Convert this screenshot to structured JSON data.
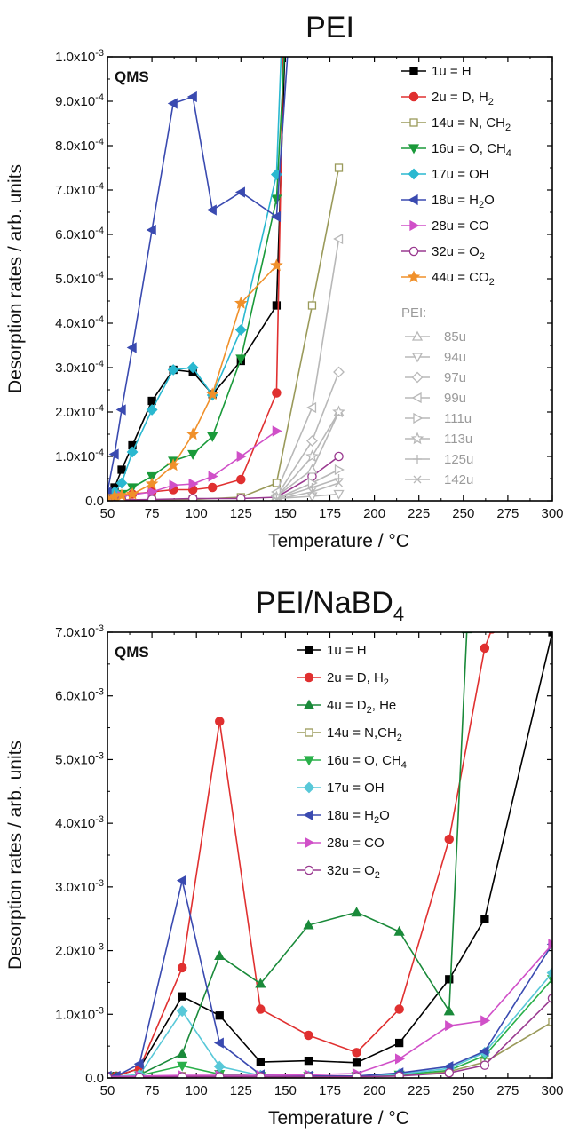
{
  "chart_data": [
    {
      "type": "line",
      "title": "PEI",
      "xlabel": "Temperature / °C",
      "ylabel": "Desorption rates / arb. units",
      "annotation": "QMS",
      "xlim": [
        50,
        300
      ],
      "ylim": [
        0,
        0.001
      ],
      "xticks": [
        "50",
        "75",
        "100",
        "125",
        "150",
        "175",
        "200",
        "225",
        "250",
        "275",
        "300"
      ],
      "yticks": [
        "0.0",
        "1.0x10-4",
        "2.0x10-4",
        "3.0x10-4",
        "4.0x10-4",
        "5.0x10-4",
        "6.0x10-4",
        "7.0x10-4",
        "8.0x10-4",
        "9.0x10-4",
        "1.0x10-3"
      ],
      "legend_group_label": "PEI:",
      "series": [
        {
          "name": "1u = H",
          "color": "#000000",
          "marker": "square",
          "filled": true,
          "x": [
            50,
            54,
            58,
            64,
            75,
            87,
            98,
            109,
            125,
            145,
            150
          ],
          "y": [
            1e-05,
            3e-05,
            7e-05,
            0.000125,
            0.000225,
            0.000295,
            0.00029,
            0.00024,
            0.000315,
            0.00044,
            0.00105
          ]
        },
        {
          "name": "2u = D, H2",
          "color": "#e03030",
          "marker": "circle",
          "filled": true,
          "x": [
            50,
            54,
            58,
            64,
            75,
            87,
            98,
            109,
            125,
            145,
            149
          ],
          "y": [
            5e-06,
            1e-05,
            1.2e-05,
            1.5e-05,
            2e-05,
            2.5e-05,
            2.5e-05,
            3e-05,
            4.8e-05,
            0.000243,
            0.00105
          ]
        },
        {
          "name": "14u = N, CH2",
          "color": "#9a9a5a",
          "marker": "square",
          "filled": false,
          "x": [
            50,
            58,
            75,
            98,
            125,
            145,
            165,
            180
          ],
          "y": [
            0,
            0,
            2e-06,
            3e-06,
            8e-06,
            4e-05,
            0.00044,
            0.00075
          ]
        },
        {
          "name": "16u = O, CH4",
          "color": "#1a9a3a",
          "marker": "triangle-down",
          "filled": true,
          "x": [
            50,
            54,
            58,
            64,
            75,
            87,
            98,
            109,
            125,
            145,
            150
          ],
          "y": [
            5e-06,
            1e-05,
            1.5e-05,
            3e-05,
            5.5e-05,
            9e-05,
            0.000105,
            0.000145,
            0.00032,
            0.00068,
            0.00105
          ]
        },
        {
          "name": "17u = OH",
          "color": "#2ab8d0",
          "marker": "diamond",
          "filled": true,
          "x": [
            50,
            54,
            58,
            64,
            75,
            87,
            98,
            109,
            125,
            145,
            148
          ],
          "y": [
            1e-05,
            2e-05,
            4e-05,
            0.00011,
            0.000205,
            0.000295,
            0.0003,
            0.000238,
            0.000385,
            0.000735,
            0.00105
          ]
        },
        {
          "name": "18u = H2O",
          "color": "#3a4ab0",
          "marker": "triangle-left",
          "filled": true,
          "x": [
            50,
            54,
            58,
            64,
            75,
            87,
            98,
            109,
            125,
            145,
            152
          ],
          "y": [
            2e-05,
            0.000105,
            0.000205,
            0.000345,
            0.00061,
            0.000895,
            0.00091,
            0.000655,
            0.000695,
            0.00064,
            0.00105
          ]
        },
        {
          "name": "28u = CO",
          "color": "#d050c8",
          "marker": "triangle-right",
          "filled": true,
          "x": [
            50,
            58,
            75,
            87,
            98,
            109,
            125,
            145
          ],
          "y": [
            5e-06,
            1e-05,
            2e-05,
            3.5e-05,
            3.8e-05,
            5.5e-05,
            0.0001,
            0.000157
          ]
        },
        {
          "name": "32u = O2",
          "color": "#9a3a90",
          "marker": "circle",
          "filled": false,
          "x": [
            50,
            58,
            75,
            98,
            125,
            145,
            165,
            180
          ],
          "y": [
            0,
            2e-06,
            3e-06,
            5e-06,
            5e-06,
            8e-06,
            5.5e-05,
            0.0001
          ]
        },
        {
          "name": "44u = CO2",
          "color": "#f0902a",
          "marker": "star",
          "filled": true,
          "x": [
            50,
            54,
            58,
            64,
            75,
            87,
            98,
            109,
            125,
            145
          ],
          "y": [
            5e-06,
            1e-05,
            1.2e-05,
            1.5e-05,
            3.8e-05,
            8e-05,
            0.00015,
            0.00024,
            0.000445,
            0.00053
          ]
        },
        {
          "name": "85u",
          "color": "#b8b8b8",
          "marker": "triangle",
          "filled": false,
          "group": "PEI",
          "x": [
            145,
            165,
            180
          ],
          "y": [
            1e-05,
            7e-05,
            0.0002
          ]
        },
        {
          "name": "94u",
          "color": "#b8b8b8",
          "marker": "triangle-down",
          "filled": false,
          "group": "PEI",
          "x": [
            145,
            165,
            180
          ],
          "y": [
            5e-06,
            1e-05,
            1.5e-05
          ]
        },
        {
          "name": "97u",
          "color": "#b8b8b8",
          "marker": "diamond",
          "filled": false,
          "group": "PEI",
          "x": [
            145,
            165,
            180
          ],
          "y": [
            1e-05,
            0.000135,
            0.00029
          ]
        },
        {
          "name": "99u",
          "color": "#b8b8b8",
          "marker": "triangle-left",
          "filled": false,
          "group": "PEI",
          "x": [
            145,
            165,
            180
          ],
          "y": [
            2e-05,
            0.00021,
            0.00059
          ]
        },
        {
          "name": "111u",
          "color": "#b8b8b8",
          "marker": "triangle-right",
          "filled": false,
          "group": "PEI",
          "x": [
            145,
            165,
            180
          ],
          "y": [
            5e-06,
            4e-05,
            7e-05
          ]
        },
        {
          "name": "113u",
          "color": "#b8b8b8",
          "marker": "star",
          "filled": false,
          "group": "PEI",
          "x": [
            145,
            165,
            180
          ],
          "y": [
            8e-06,
            0.0001,
            0.0002
          ]
        },
        {
          "name": "125u",
          "color": "#b8b8b8",
          "marker": "plus",
          "filled": false,
          "group": "PEI",
          "x": [
            145,
            165,
            180
          ],
          "y": [
            5e-06,
            3e-05,
            5e-05
          ]
        },
        {
          "name": "142u",
          "color": "#b8b8b8",
          "marker": "cross",
          "filled": false,
          "group": "PEI",
          "x": [
            145,
            165,
            180
          ],
          "y": [
            3e-06,
            2e-05,
            4e-05
          ]
        }
      ]
    },
    {
      "type": "line",
      "title": "PEI/NaBD4",
      "xlabel": "Temperature / °C",
      "ylabel": "Desorption rates / arb. units",
      "annotation": "QMS",
      "xlim": [
        50,
        300
      ],
      "ylim": [
        0,
        0.007
      ],
      "xticks": [
        "50",
        "75",
        "100",
        "125",
        "150",
        "175",
        "200",
        "225",
        "250",
        "275",
        "300"
      ],
      "yticks": [
        "0.0",
        "1.0x10-3",
        "2.0x10-3",
        "3.0x10-3",
        "4.0x10-3",
        "5.0x10-3",
        "6.0x10-3",
        "7.0x10-3"
      ],
      "series": [
        {
          "name": "1u = H",
          "color": "#000000",
          "marker": "square",
          "filled": true,
          "x": [
            50,
            55,
            68,
            92,
            113,
            136,
            163,
            190,
            214,
            242,
            262,
            300
          ],
          "y": [
            3e-05,
            3e-05,
            0.00015,
            0.00128,
            0.00098,
            0.00025,
            0.00027,
            0.00024,
            0.00055,
            0.00155,
            0.0025,
            0.007
          ]
        },
        {
          "name": "2u = D, H2",
          "color": "#e03030",
          "marker": "circle",
          "filled": true,
          "x": [
            50,
            55,
            68,
            92,
            113,
            136,
            163,
            190,
            214,
            242,
            262,
            266
          ],
          "y": [
            3e-05,
            3e-05,
            0.00015,
            0.00173,
            0.0056,
            0.00108,
            0.00067,
            0.0004,
            0.00108,
            0.00375,
            0.00675,
            0.00705
          ]
        },
        {
          "name": "4u = D2, He",
          "color": "#1a8a3a",
          "marker": "triangle",
          "filled": true,
          "x": [
            50,
            55,
            68,
            92,
            113,
            136,
            163,
            190,
            214,
            242,
            252
          ],
          "y": [
            2e-05,
            2e-05,
            5e-05,
            0.00038,
            0.00192,
            0.00148,
            0.0024,
            0.0026,
            0.0023,
            0.00105,
            0.00705
          ]
        },
        {
          "name": "14u = N,CH2",
          "color": "#9a9a5a",
          "marker": "square",
          "filled": false,
          "x": [
            50,
            68,
            92,
            113,
            136,
            163,
            190,
            214,
            242,
            262,
            300
          ],
          "y": [
            1e-05,
            2e-05,
            3e-05,
            3e-05,
            3e-05,
            3e-05,
            3e-05,
            4e-05,
            0.0001,
            0.00025,
            0.00088
          ]
        },
        {
          "name": "16u = O, CH4",
          "color": "#2ab04a",
          "marker": "triangle-down",
          "filled": true,
          "x": [
            50,
            68,
            92,
            113,
            136,
            163,
            190,
            214,
            242,
            262,
            300
          ],
          "y": [
            2e-05,
            4e-05,
            0.00019,
            6e-05,
            3e-05,
            3e-05,
            3e-05,
            5e-05,
            0.00012,
            0.00035,
            0.00155
          ]
        },
        {
          "name": "17u = OH",
          "color": "#58c8d8",
          "marker": "diamond",
          "filled": true,
          "x": [
            50,
            68,
            92,
            113,
            136,
            163,
            190,
            214,
            242,
            262,
            300
          ],
          "y": [
            2e-05,
            5e-05,
            0.00105,
            0.00018,
            4e-05,
            3e-05,
            3e-05,
            6e-05,
            0.00015,
            0.0004,
            0.00165
          ]
        },
        {
          "name": "18u = H2O",
          "color": "#3a4ab0",
          "marker": "triangle-left",
          "filled": true,
          "x": [
            50,
            55,
            68,
            92,
            113,
            136,
            163,
            190,
            214,
            242,
            262,
            300
          ],
          "y": [
            3e-05,
            3e-05,
            0.00022,
            0.0031,
            0.00055,
            5e-05,
            3e-05,
            3e-05,
            8e-05,
            0.00018,
            0.00042,
            0.0021
          ]
        },
        {
          "name": "28u = CO",
          "color": "#d050c8",
          "marker": "triangle-right",
          "filled": true,
          "x": [
            50,
            68,
            92,
            113,
            136,
            163,
            190,
            214,
            242,
            262,
            300
          ],
          "y": [
            2e-05,
            3e-05,
            4e-05,
            4e-05,
            4e-05,
            5e-05,
            7e-05,
            0.0003,
            0.00082,
            0.0009,
            0.0021
          ]
        },
        {
          "name": "32u = O2",
          "color": "#9a3a90",
          "marker": "circle",
          "filled": false,
          "x": [
            50,
            68,
            92,
            113,
            136,
            163,
            190,
            214,
            242,
            262,
            300
          ],
          "y": [
            1e-05,
            1e-05,
            2e-05,
            2e-05,
            2e-05,
            2e-05,
            2e-05,
            3e-05,
            8e-05,
            0.0002,
            0.00125
          ]
        }
      ]
    }
  ],
  "legend_text": {
    "top": [
      {
        "base": "1u = H",
        "sub": ""
      },
      {
        "base": "2u = D, H",
        "sub": "2"
      },
      {
        "base": "14u = N, CH",
        "sub": "2"
      },
      {
        "base": "16u = O, CH",
        "sub": "4"
      },
      {
        "base": "17u = OH",
        "sub": ""
      },
      {
        "base": "18u = H",
        "sub": "2",
        "tail": "O"
      },
      {
        "base": "28u = CO",
        "sub": ""
      },
      {
        "base": "32u = O",
        "sub": "2"
      },
      {
        "base": "44u = CO",
        "sub": "2"
      }
    ],
    "bottom": [
      {
        "base": "1u = H",
        "sub": ""
      },
      {
        "base": "2u = D, H",
        "sub": "2"
      },
      {
        "base": "4u = D",
        "sub": "2",
        "tail": ", He"
      },
      {
        "base": "14u = N,CH",
        "sub": "2"
      },
      {
        "base": "16u = O, CH",
        "sub": "4"
      },
      {
        "base": "17u = OH",
        "sub": ""
      },
      {
        "base": "18u = H",
        "sub": "2",
        "tail": "O"
      },
      {
        "base": "28u = CO",
        "sub": ""
      },
      {
        "base": "32u = O",
        "sub": "2"
      }
    ]
  }
}
